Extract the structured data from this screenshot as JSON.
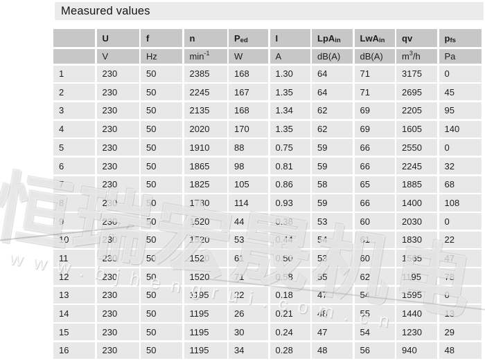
{
  "title": "Measured values",
  "colors": {
    "title_band_bg": "#ebebeb",
    "header_cell_bg": "#c7c7c7",
    "data_cell_bg": "#e8e8e8",
    "grid_gap": "#ffffff",
    "text": "#1d1d1d"
  },
  "table": {
    "columns": [
      {
        "label": "",
        "sub": "",
        "unit": "",
        "unit_sup": "",
        "unit_after": ""
      },
      {
        "label": "U",
        "sub": "",
        "unit": "V",
        "unit_sup": "",
        "unit_after": ""
      },
      {
        "label": "f",
        "sub": "",
        "unit": "Hz",
        "unit_sup": "",
        "unit_after": ""
      },
      {
        "label": "n",
        "sub": "",
        "unit": "min",
        "unit_sup": "-1",
        "unit_after": ""
      },
      {
        "label": "P",
        "sub": "ed",
        "unit": "W",
        "unit_sup": "",
        "unit_after": ""
      },
      {
        "label": "I",
        "sub": "",
        "unit": "A",
        "unit_sup": "",
        "unit_after": ""
      },
      {
        "label": "LpA",
        "sub": "in",
        "unit": "dB(A)",
        "unit_sup": "",
        "unit_after": ""
      },
      {
        "label": "LwA",
        "sub": "in",
        "unit": "dB(A)",
        "unit_sup": "",
        "unit_after": ""
      },
      {
        "label": "qv",
        "sub": "",
        "unit": "m",
        "unit_sup": "3",
        "unit_after": "/h"
      },
      {
        "label": "p",
        "sub": "fs",
        "unit": "Pa",
        "unit_sup": "",
        "unit_after": ""
      }
    ],
    "rows": [
      [
        "1",
        "230",
        "50",
        "2385",
        "168",
        "1.30",
        "64",
        "71",
        "3175",
        "0"
      ],
      [
        "2",
        "230",
        "50",
        "2245",
        "167",
        "1.35",
        "64",
        "71",
        "2695",
        "45"
      ],
      [
        "3",
        "230",
        "50",
        "2135",
        "168",
        "1.34",
        "62",
        "69",
        "2205",
        "95"
      ],
      [
        "4",
        "230",
        "50",
        "2020",
        "170",
        "1.35",
        "62",
        "69",
        "1605",
        "140"
      ],
      [
        "5",
        "230",
        "50",
        "1910",
        "88",
        "0.75",
        "59",
        "66",
        "2550",
        "0"
      ],
      [
        "6",
        "230",
        "50",
        "1865",
        "98",
        "0.81",
        "59",
        "66",
        "2245",
        "32"
      ],
      [
        "7",
        "230",
        "50",
        "1825",
        "105",
        "0.86",
        "58",
        "65",
        "1885",
        "68"
      ],
      [
        "8",
        "230",
        "50",
        "1780",
        "114",
        "0.93",
        "59",
        "66",
        "1400",
        "108"
      ],
      [
        "9",
        "230",
        "50",
        "1520",
        "44",
        "0.38",
        "53",
        "60",
        "2030",
        "0"
      ],
      [
        "10",
        "230",
        "50",
        "1520",
        "53",
        "0.44",
        "54",
        "61",
        "1830",
        "22"
      ],
      [
        "11",
        "230",
        "50",
        "1520",
        "61",
        "0.50",
        "53",
        "60",
        "1565",
        "47"
      ],
      [
        "12",
        "230",
        "50",
        "1520",
        "71",
        "0.58",
        "55",
        "62",
        "1195",
        "78"
      ],
      [
        "13",
        "230",
        "50",
        "1195",
        "22",
        "0.18",
        "47",
        "54",
        "1595",
        "0"
      ],
      [
        "14",
        "230",
        "50",
        "1195",
        "26",
        "0.21",
        "48",
        "55",
        "1440",
        "13"
      ],
      [
        "15",
        "230",
        "50",
        "1195",
        "30",
        "0.24",
        "47",
        "54",
        "1230",
        "29"
      ],
      [
        "16",
        "230",
        "50",
        "1195",
        "34",
        "0.28",
        "48",
        "56",
        "940",
        "48"
      ]
    ]
  },
  "watermark": {
    "cjk_text": "恒瑞宏晟机电",
    "url_text": "www.bjhengrui.com.cn"
  }
}
